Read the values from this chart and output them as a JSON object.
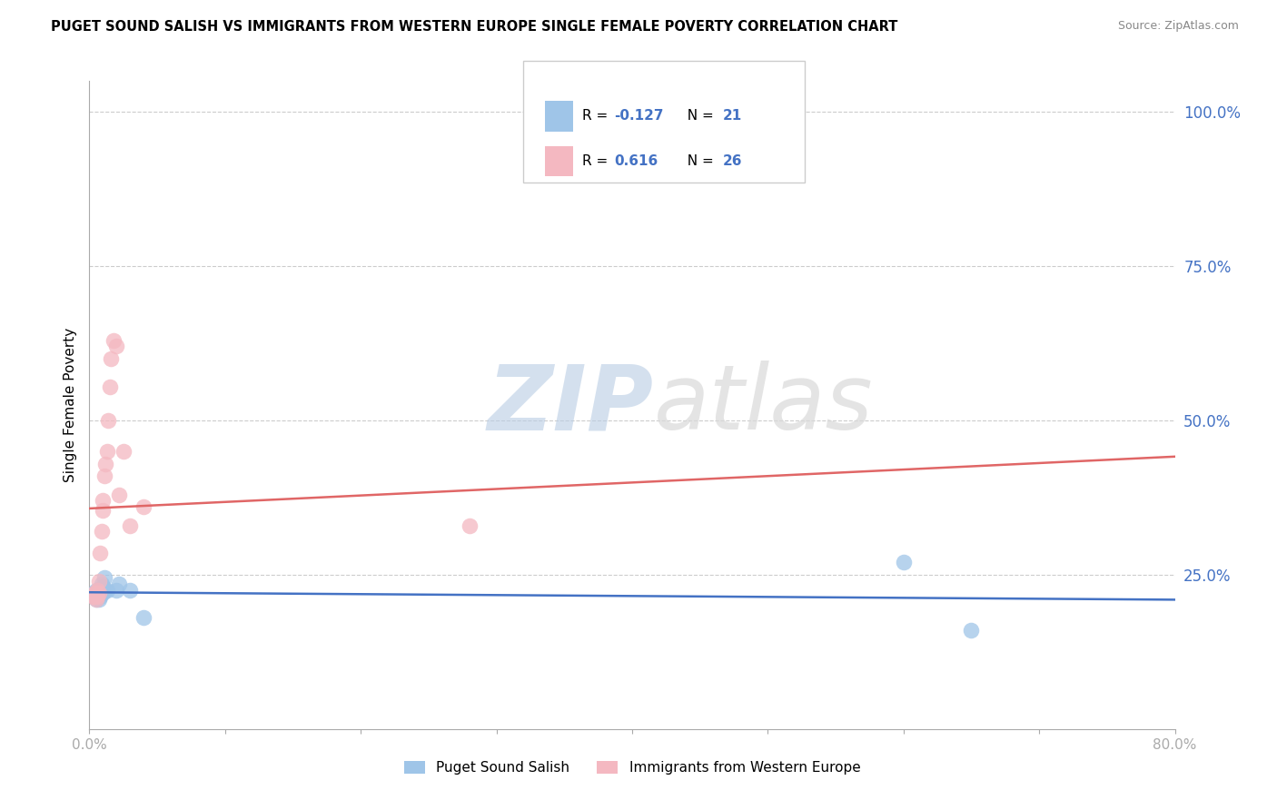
{
  "title": "PUGET SOUND SALISH VS IMMIGRANTS FROM WESTERN EUROPE SINGLE FEMALE POVERTY CORRELATION CHART",
  "source": "Source: ZipAtlas.com",
  "ylabel": "Single Female Poverty",
  "xlim": [
    0.0,
    0.8
  ],
  "ylim": [
    0.0,
    1.05
  ],
  "legend1_label": "Puget Sound Salish",
  "legend2_label": "Immigrants from Western Europe",
  "r1": -0.127,
  "n1": 21,
  "r2": 0.616,
  "n2": 26,
  "color1": "#9fc5e8",
  "color2": "#f4b8c1",
  "trendline1_color": "#4472c4",
  "trendline2_color": "#e06666",
  "blue_x": [
    0.003,
    0.004,
    0.005,
    0.005,
    0.006,
    0.006,
    0.007,
    0.007,
    0.008,
    0.009,
    0.01,
    0.01,
    0.011,
    0.012,
    0.013,
    0.02,
    0.022,
    0.03,
    0.04,
    0.6,
    0.65
  ],
  "blue_y": [
    0.22,
    0.215,
    0.21,
    0.225,
    0.215,
    0.22,
    0.21,
    0.225,
    0.215,
    0.235,
    0.22,
    0.23,
    0.245,
    0.225,
    0.225,
    0.225,
    0.235,
    0.225,
    0.18,
    0.27,
    0.16
  ],
  "pink_x": [
    0.003,
    0.004,
    0.004,
    0.005,
    0.005,
    0.006,
    0.006,
    0.007,
    0.007,
    0.008,
    0.009,
    0.01,
    0.01,
    0.011,
    0.012,
    0.013,
    0.014,
    0.015,
    0.016,
    0.018,
    0.02,
    0.022,
    0.025,
    0.03,
    0.04,
    0.28
  ],
  "pink_y": [
    0.215,
    0.215,
    0.22,
    0.21,
    0.22,
    0.215,
    0.225,
    0.22,
    0.24,
    0.285,
    0.32,
    0.355,
    0.37,
    0.41,
    0.43,
    0.45,
    0.5,
    0.555,
    0.6,
    0.63,
    0.62,
    0.38,
    0.45,
    0.33,
    0.36,
    0.33
  ],
  "watermark_zip": "ZIP",
  "watermark_atlas": "atlas",
  "background_color": "#ffffff",
  "grid_color": "#cccccc",
  "ytick_color": "#4472c4",
  "ytick_vals": [
    0.25,
    0.5,
    0.75,
    1.0
  ],
  "ytick_labels": [
    "25.0%",
    "50.0%",
    "75.0%",
    "100.0%"
  ],
  "xtick_vals": [
    0.0,
    0.1,
    0.2,
    0.3,
    0.4,
    0.5,
    0.6,
    0.7,
    0.8
  ],
  "xtick_labels": [
    "0.0%",
    "",
    "",
    "",
    "",
    "",
    "",
    "",
    "80.0%"
  ]
}
